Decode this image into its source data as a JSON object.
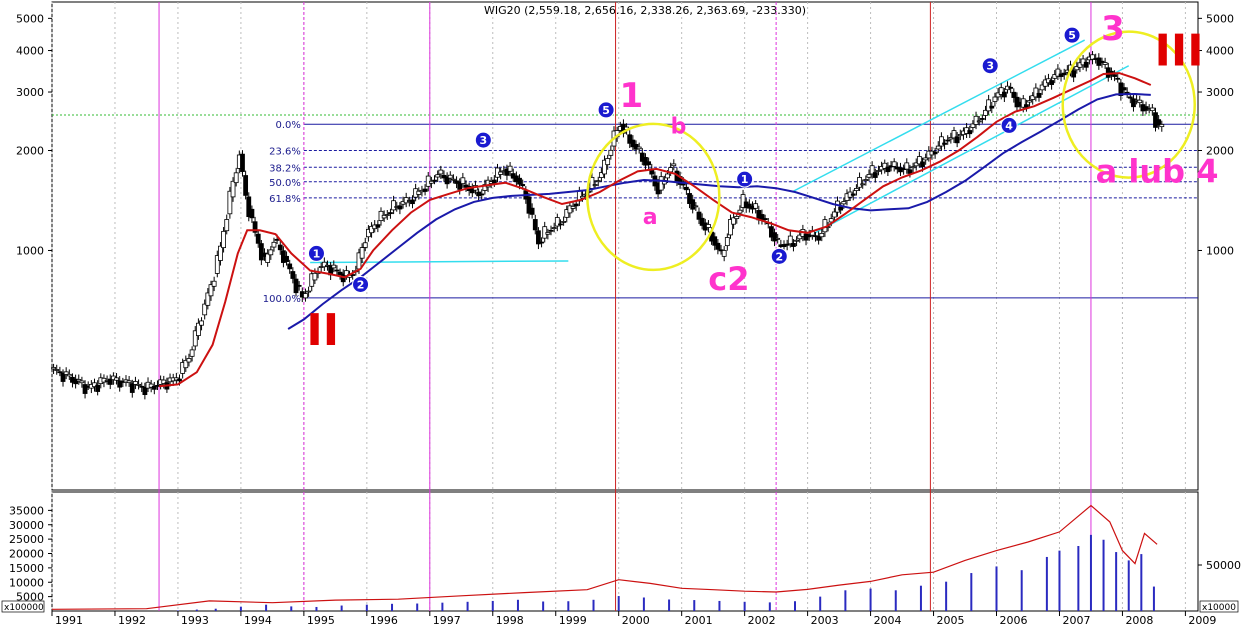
{
  "chart_data": {
    "type": "candlestick",
    "title": "WIG20 (2,559.18, 2,656.16, 2,338.26, 2,363.69, -233.330)",
    "price_axis": {
      "scale": "log",
      "ylim": [
        190,
        5600
      ],
      "ticks": [
        "5000",
        "4000",
        "3000",
        "2000",
        "1000"
      ],
      "tick_values": [
        5000,
        4000,
        3000,
        2000,
        1000
      ]
    },
    "x_axis": {
      "range": [
        1991.0,
        2009.2
      ],
      "years": [
        {
          "label": "1991",
          "x": 1991.0
        },
        {
          "label": "1992",
          "x": 1992.0
        },
        {
          "label": "1993",
          "x": 1993.0
        },
        {
          "label": "1994",
          "x": 1994.0
        },
        {
          "label": "1995",
          "x": 1995.0
        },
        {
          "label": "1996",
          "x": 1996.0
        },
        {
          "label": "1997",
          "x": 1997.0
        },
        {
          "label": "1998",
          "x": 1998.0
        },
        {
          "label": "1999",
          "x": 1999.0
        },
        {
          "label": "2000",
          "x": 2000.0
        },
        {
          "label": "2001",
          "x": 2001.0
        },
        {
          "label": "2002",
          "x": 2002.0
        },
        {
          "label": "2003",
          "x": 2003.0
        },
        {
          "label": "2004",
          "x": 2004.0
        },
        {
          "label": "2005",
          "x": 2005.0
        },
        {
          "label": "2006",
          "x": 2006.0
        },
        {
          "label": "2007",
          "x": 2007.0
        },
        {
          "label": "2008",
          "x": 2008.0
        },
        {
          "label": "2009",
          "x": 2009.0
        }
      ]
    },
    "price_path": [
      [
        1991.0,
        440
      ],
      [
        1991.3,
        415
      ],
      [
        1991.6,
        385
      ],
      [
        1991.9,
        410
      ],
      [
        1992.2,
        400
      ],
      [
        1992.5,
        385
      ],
      [
        1992.8,
        400
      ],
      [
        1993.0,
        410
      ],
      [
        1993.2,
        480
      ],
      [
        1993.4,
        640
      ],
      [
        1993.55,
        780
      ],
      [
        1993.7,
        1020
      ],
      [
        1993.85,
        1450
      ],
      [
        1994.0,
        1950
      ],
      [
        1994.1,
        1450
      ],
      [
        1994.25,
        1120
      ],
      [
        1994.4,
        920
      ],
      [
        1994.55,
        1080
      ],
      [
        1994.7,
        960
      ],
      [
        1994.85,
        820
      ],
      [
        1995.0,
        720
      ],
      [
        1995.1,
        780
      ],
      [
        1995.25,
        890
      ],
      [
        1995.4,
        900
      ],
      [
        1995.55,
        860
      ],
      [
        1995.7,
        830
      ],
      [
        1995.85,
        880
      ],
      [
        1996.0,
        1100
      ],
      [
        1996.2,
        1230
      ],
      [
        1996.45,
        1350
      ],
      [
        1996.7,
        1420
      ],
      [
        1996.95,
        1560
      ],
      [
        1997.15,
        1700
      ],
      [
        1997.4,
        1620
      ],
      [
        1997.6,
        1560
      ],
      [
        1997.8,
        1480
      ],
      [
        1998.0,
        1630
      ],
      [
        1998.2,
        1760
      ],
      [
        1998.4,
        1650
      ],
      [
        1998.55,
        1450
      ],
      [
        1998.75,
        1060
      ],
      [
        1998.9,
        1150
      ],
      [
        1999.1,
        1220
      ],
      [
        1999.3,
        1380
      ],
      [
        1999.5,
        1500
      ],
      [
        1999.75,
        1700
      ],
      [
        1999.95,
        2200
      ],
      [
        2000.05,
        2400
      ],
      [
        2000.2,
        2150
      ],
      [
        2000.45,
        1850
      ],
      [
        2000.65,
        1520
      ],
      [
        2000.85,
        1800
      ],
      [
        2001.05,
        1550
      ],
      [
        2001.3,
        1250
      ],
      [
        2001.5,
        1100
      ],
      [
        2001.65,
        960
      ],
      [
        2001.8,
        1200
      ],
      [
        2002.0,
        1400
      ],
      [
        2002.2,
        1320
      ],
      [
        2002.4,
        1180
      ],
      [
        2002.55,
        1040
      ],
      [
        2002.75,
        1050
      ],
      [
        2002.95,
        1120
      ],
      [
        2003.2,
        1100
      ],
      [
        2003.5,
        1350
      ],
      [
        2003.8,
        1550
      ],
      [
        2004.0,
        1700
      ],
      [
        2004.3,
        1800
      ],
      [
        2004.6,
        1750
      ],
      [
        2004.9,
        1900
      ],
      [
        2005.2,
        2150
      ],
      [
        2005.5,
        2250
      ],
      [
        2005.8,
        2550
      ],
      [
        2006.0,
        2900
      ],
      [
        2006.2,
        3100
      ],
      [
        2006.4,
        2700
      ],
      [
        2006.6,
        2900
      ],
      [
        2006.8,
        3200
      ],
      [
        2007.0,
        3400
      ],
      [
        2007.25,
        3500
      ],
      [
        2007.45,
        3750
      ],
      [
        2007.6,
        3800
      ],
      [
        2007.75,
        3550
      ],
      [
        2007.9,
        3300
      ],
      [
        2008.1,
        2900
      ],
      [
        2008.3,
        2750
      ],
      [
        2008.5,
        2600
      ],
      [
        2008.6,
        2360
      ]
    ],
    "fibonacci": {
      "levels": [
        {
          "label": "0.0%",
          "value": 2400
        },
        {
          "label": "23.6%",
          "value": 2000
        },
        {
          "label": "38.2%",
          "value": 1780
        },
        {
          "label": "50.0%",
          "value": 1610
        },
        {
          "label": "61.8%",
          "value": 1440
        },
        {
          "label": "100.0%",
          "value": 720
        }
      ],
      "green_dotted_level": 2559
    },
    "red_ma": [
      [
        1992.7,
        390
      ],
      [
        1993.0,
        395
      ],
      [
        1993.3,
        430
      ],
      [
        1993.55,
        520
      ],
      [
        1993.75,
        700
      ],
      [
        1993.95,
        980
      ],
      [
        1994.1,
        1150
      ],
      [
        1994.3,
        1150
      ],
      [
        1994.55,
        1120
      ],
      [
        1994.8,
        980
      ],
      [
        1995.1,
        870
      ],
      [
        1995.4,
        850
      ],
      [
        1995.65,
        830
      ],
      [
        1995.9,
        880
      ],
      [
        1996.1,
        1000
      ],
      [
        1996.4,
        1150
      ],
      [
        1996.7,
        1300
      ],
      [
        1997.0,
        1420
      ],
      [
        1997.3,
        1480
      ],
      [
        1997.6,
        1540
      ],
      [
        1997.9,
        1570
      ],
      [
        1998.2,
        1600
      ],
      [
        1998.5,
        1530
      ],
      [
        1998.8,
        1450
      ],
      [
        1999.1,
        1380
      ],
      [
        1999.4,
        1420
      ],
      [
        1999.7,
        1500
      ],
      [
        2000.0,
        1620
      ],
      [
        2000.3,
        1730
      ],
      [
        2000.6,
        1760
      ],
      [
        2000.9,
        1700
      ],
      [
        2001.2,
        1560
      ],
      [
        2001.5,
        1420
      ],
      [
        2001.8,
        1300
      ],
      [
        2002.1,
        1260
      ],
      [
        2002.4,
        1210
      ],
      [
        2002.7,
        1150
      ],
      [
        2003.0,
        1130
      ],
      [
        2003.3,
        1180
      ],
      [
        2003.6,
        1290
      ],
      [
        2003.9,
        1420
      ],
      [
        2004.2,
        1560
      ],
      [
        2004.5,
        1660
      ],
      [
        2004.8,
        1740
      ],
      [
        2005.1,
        1850
      ],
      [
        2005.4,
        2000
      ],
      [
        2005.7,
        2200
      ],
      [
        2006.0,
        2440
      ],
      [
        2006.3,
        2620
      ],
      [
        2006.6,
        2720
      ],
      [
        2006.9,
        2880
      ],
      [
        2007.2,
        3060
      ],
      [
        2007.5,
        3250
      ],
      [
        2007.7,
        3400
      ],
      [
        2007.95,
        3420
      ],
      [
        2008.2,
        3300
      ],
      [
        2008.45,
        3150
      ]
    ],
    "blue_ma": [
      [
        1994.75,
        580
      ],
      [
        1995.0,
        620
      ],
      [
        1995.3,
        690
      ],
      [
        1995.6,
        760
      ],
      [
        1995.9,
        830
      ],
      [
        1996.2,
        920
      ],
      [
        1996.5,
        1020
      ],
      [
        1996.8,
        1130
      ],
      [
        1997.1,
        1240
      ],
      [
        1997.4,
        1330
      ],
      [
        1997.7,
        1400
      ],
      [
        1998.0,
        1440
      ],
      [
        1998.3,
        1460
      ],
      [
        1998.6,
        1470
      ],
      [
        1998.9,
        1480
      ],
      [
        1999.2,
        1500
      ],
      [
        1999.5,
        1520
      ],
      [
        1999.8,
        1560
      ],
      [
        2000.1,
        1600
      ],
      [
        2000.4,
        1630
      ],
      [
        2000.7,
        1620
      ],
      [
        2001.0,
        1600
      ],
      [
        2001.3,
        1580
      ],
      [
        2001.6,
        1560
      ],
      [
        2001.9,
        1550
      ],
      [
        2002.2,
        1560
      ],
      [
        2002.5,
        1540
      ],
      [
        2002.8,
        1500
      ],
      [
        2003.1,
        1440
      ],
      [
        2003.4,
        1380
      ],
      [
        2003.7,
        1340
      ],
      [
        2004.0,
        1320
      ],
      [
        2004.3,
        1330
      ],
      [
        2004.6,
        1340
      ],
      [
        2004.9,
        1400
      ],
      [
        2005.2,
        1500
      ],
      [
        2005.5,
        1620
      ],
      [
        2005.8,
        1780
      ],
      [
        2006.1,
        1960
      ],
      [
        2006.4,
        2120
      ],
      [
        2006.7,
        2280
      ],
      [
        2007.0,
        2460
      ],
      [
        2007.3,
        2660
      ],
      [
        2007.6,
        2850
      ],
      [
        2007.9,
        2950
      ],
      [
        2008.2,
        2960
      ],
      [
        2008.45,
        2940
      ]
    ],
    "channel_lines": [
      {
        "from": [
          1995.1,
          920
        ],
        "to": [
          1999.2,
          930
        ]
      },
      {
        "from": [
          2002.75,
          1500
        ],
        "to": [
          2007.4,
          4300
        ]
      },
      {
        "from": [
          2003.0,
          1100
        ],
        "to": [
          2008.1,
          3600
        ]
      }
    ],
    "vertical_lines": {
      "magenta_solid": [
        1992.7,
        1997.0,
        2007.5
      ],
      "magenta_dashed": [
        1995.0,
        2002.5
      ],
      "red_solid": [
        1999.95,
        2004.95
      ]
    },
    "annotations": [
      {
        "text": "II",
        "x": 1995.3,
        "y": 520,
        "color": "#e00000",
        "size": 44
      },
      {
        "text": "1",
        "x": 2000.2,
        "y": 2700,
        "color": "#ff33cc",
        "size": 34
      },
      {
        "text": "a",
        "x": 2000.5,
        "y": 1200,
        "color": "#ff33cc",
        "size": 22
      },
      {
        "text": "b",
        "x": 2000.95,
        "y": 2250,
        "color": "#ff33cc",
        "size": 22
      },
      {
        "text": "c2",
        "x": 2001.75,
        "y": 760,
        "color": "#ff33cc",
        "size": 32
      },
      {
        "text": "3",
        "x": 2007.85,
        "y": 4300,
        "color": "#ff33cc",
        "size": 34
      },
      {
        "text": "III",
        "x": 2008.9,
        "y": 3600,
        "color": "#e00000",
        "size": 44
      },
      {
        "text": "a lub 4",
        "x": 2008.55,
        "y": 1600,
        "color": "#ff33cc",
        "size": 32
      }
    ],
    "wave_markers": [
      {
        "label": "1",
        "x": 1995.2,
        "y": 980
      },
      {
        "label": "2",
        "x": 1995.9,
        "y": 790
      },
      {
        "label": "3",
        "x": 1997.85,
        "y": 2150
      },
      {
        "label": "5",
        "x": 1999.8,
        "y": 2650
      },
      {
        "label": "1",
        "x": 2002.0,
        "y": 1640
      },
      {
        "label": "2",
        "x": 2002.55,
        "y": 960
      },
      {
        "label": "3",
        "x": 2005.9,
        "y": 3600
      },
      {
        "label": "4",
        "x": 2006.2,
        "y": 2380
      },
      {
        "label": "5",
        "x": 2007.2,
        "y": 4450
      }
    ],
    "circles": [
      {
        "cx": 2000.55,
        "cy": 1450
      },
      {
        "cx": 2008.1,
        "cy": 2750
      }
    ],
    "volume_panel": {
      "left_ticks": [
        "35000",
        "30000",
        "25000",
        "20000",
        "15000",
        "10000",
        "5000"
      ],
      "left_tick_values": [
        35000,
        30000,
        25000,
        20000,
        15000,
        10000,
        5000
      ],
      "left_multiplier": "x100000",
      "right_ticks": [
        "50000"
      ],
      "right_tick_values": [
        16000
      ],
      "right_multiplier": "x10000",
      "ylim": [
        0,
        40000
      ],
      "volume_bars": [
        [
          1993.0,
          200
        ],
        [
          1993.3,
          500
        ],
        [
          1993.6,
          800
        ],
        [
          1994.0,
          1500
        ],
        [
          1994.4,
          2200
        ],
        [
          1994.8,
          1600
        ],
        [
          1995.2,
          1400
        ],
        [
          1995.6,
          1900
        ],
        [
          1996.0,
          2200
        ],
        [
          1996.4,
          2500
        ],
        [
          1996.8,
          2600
        ],
        [
          1997.2,
          2900
        ],
        [
          1997.6,
          3200
        ],
        [
          1998.0,
          3500
        ],
        [
          1998.4,
          3900
        ],
        [
          1998.8,
          3300
        ],
        [
          1999.2,
          3400
        ],
        [
          1999.6,
          3900
        ],
        [
          2000.0,
          5200
        ],
        [
          2000.4,
          4700
        ],
        [
          2000.8,
          4000
        ],
        [
          2001.2,
          3800
        ],
        [
          2001.6,
          3500
        ],
        [
          2002.0,
          3200
        ],
        [
          2002.4,
          3000
        ],
        [
          2002.8,
          3400
        ],
        [
          2003.2,
          5000
        ],
        [
          2003.6,
          7200
        ],
        [
          2004.0,
          7800
        ],
        [
          2004.4,
          7200
        ],
        [
          2004.8,
          8800
        ],
        [
          2005.2,
          10200
        ],
        [
          2005.6,
          13200
        ],
        [
          2006.0,
          15500
        ],
        [
          2006.4,
          14200
        ],
        [
          2006.8,
          18800
        ],
        [
          2007.0,
          21000
        ],
        [
          2007.3,
          22600
        ],
        [
          2007.5,
          26500
        ],
        [
          2007.7,
          24800
        ],
        [
          2007.9,
          20500
        ],
        [
          2008.1,
          17600
        ],
        [
          2008.3,
          19800
        ],
        [
          2008.5,
          8500
        ]
      ],
      "red_line": [
        [
          1991.0,
          600
        ],
        [
          1992.5,
          800
        ],
        [
          1993.5,
          3500
        ],
        [
          1994.5,
          2900
        ],
        [
          1995.5,
          3800
        ],
        [
          1996.5,
          4100
        ],
        [
          1997.5,
          5300
        ],
        [
          1998.5,
          6400
        ],
        [
          1999.5,
          7400
        ],
        [
          2000.0,
          10900
        ],
        [
          2000.5,
          9600
        ],
        [
          2001.0,
          7900
        ],
        [
          2001.5,
          7400
        ],
        [
          2002.0,
          6900
        ],
        [
          2002.5,
          6600
        ],
        [
          2003.0,
          7500
        ],
        [
          2003.5,
          9000
        ],
        [
          2004.0,
          10300
        ],
        [
          2004.5,
          12600
        ],
        [
          2005.0,
          13500
        ],
        [
          2005.5,
          17600
        ],
        [
          2006.0,
          21000
        ],
        [
          2006.5,
          24000
        ],
        [
          2007.0,
          27500
        ],
        [
          2007.5,
          36700
        ],
        [
          2007.8,
          31000
        ],
        [
          2008.0,
          21000
        ],
        [
          2008.2,
          16500
        ],
        [
          2008.35,
          27000
        ],
        [
          2008.55,
          23200
        ]
      ]
    }
  }
}
